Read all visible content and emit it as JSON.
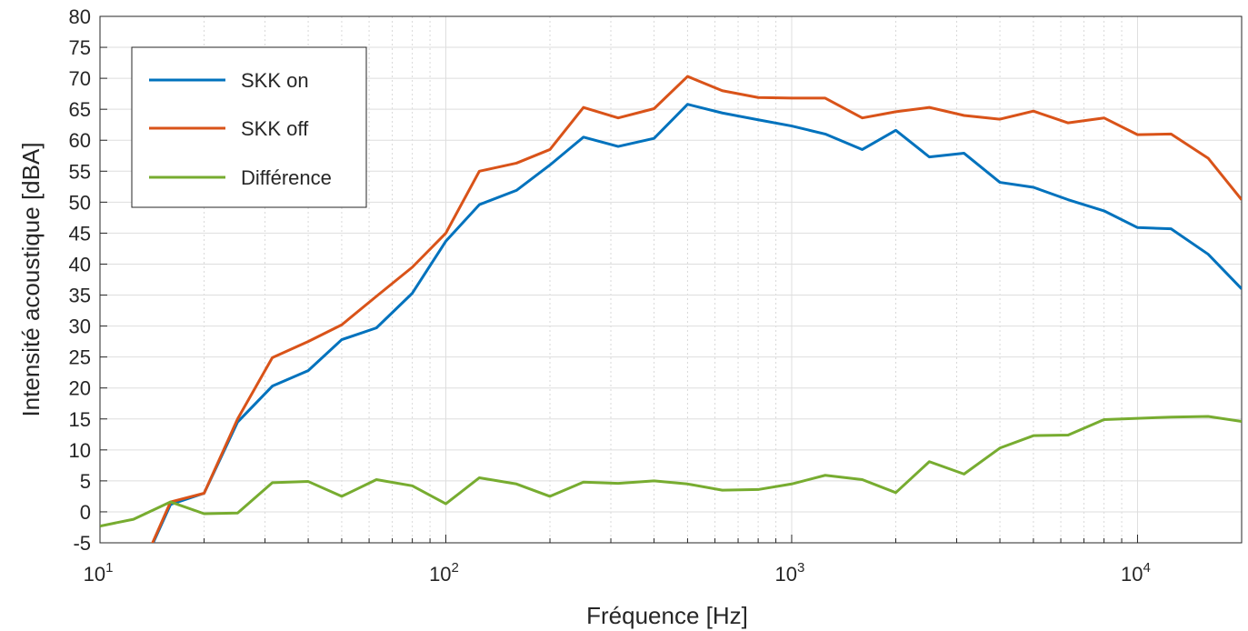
{
  "chart_data": {
    "type": "line",
    "xscale": "log",
    "xlim": [
      10,
      20000
    ],
    "ylim": [
      -5,
      80
    ],
    "grid": true,
    "legend_position": "top-left",
    "xlabel": "Fréquence [Hz]",
    "ylabel": "Intensité acoustique [dBA]",
    "x_ticks": [
      {
        "value": 10,
        "base": "10",
        "exp": "1"
      },
      {
        "value": 100,
        "base": "10",
        "exp": "2"
      },
      {
        "value": 1000,
        "base": "10",
        "exp": "3"
      },
      {
        "value": 10000,
        "base": "10",
        "exp": "4"
      }
    ],
    "y_ticks": [
      "-5",
      "0",
      "5",
      "10",
      "15",
      "20",
      "25",
      "30",
      "35",
      "40",
      "45",
      "50",
      "55",
      "60",
      "65",
      "70",
      "75",
      "80"
    ],
    "x": [
      10,
      12.5,
      16,
      20,
      25,
      31.5,
      40,
      50,
      63,
      80,
      100,
      125,
      160,
      200,
      250,
      315,
      400,
      500,
      630,
      800,
      1000,
      1250,
      1600,
      2000,
      2500,
      3150,
      4000,
      5000,
      6300,
      8000,
      10000,
      12500,
      16000,
      20000
    ],
    "series": [
      {
        "name": "SKK on",
        "color": "#0072BD",
        "values": [
          null,
          -12,
          1.2,
          3,
          14.5,
          20.3,
          22.8,
          27.8,
          29.7,
          35.3,
          43.7,
          49.6,
          51.9,
          56,
          60.5,
          59,
          60.3,
          65.8,
          64.4,
          63.3,
          62.3,
          61,
          58.5,
          61.6,
          57.3,
          57.9,
          53.2,
          52.4,
          50.4,
          48.6,
          45.9,
          45.7,
          41.6,
          36
        ]
      },
      {
        "name": "SKK off",
        "color": "#D95319",
        "values": [
          null,
          -12,
          1.6,
          3,
          15,
          24.9,
          27.5,
          30.2,
          34.8,
          39.5,
          45,
          55,
          56.3,
          58.5,
          65.3,
          63.6,
          65.1,
          70.3,
          68,
          66.9,
          66.8,
          66.8,
          63.6,
          64.6,
          65.3,
          64,
          63.4,
          64.7,
          62.8,
          63.6,
          60.9,
          61,
          57.1,
          50.4
        ]
      },
      {
        "name": "Différence",
        "color": "#77AC30",
        "values": [
          -2.3,
          -1.2,
          1.6,
          -0.3,
          -0.2,
          4.7,
          4.9,
          2.5,
          5.2,
          4.2,
          1.3,
          5.5,
          4.5,
          2.5,
          4.8,
          4.6,
          5,
          4.5,
          3.5,
          3.6,
          4.5,
          5.9,
          5.2,
          3.1,
          8.1,
          6.1,
          10.3,
          12.3,
          12.4,
          14.9,
          15.1,
          15.3,
          15.4,
          14.6
        ]
      }
    ]
  }
}
